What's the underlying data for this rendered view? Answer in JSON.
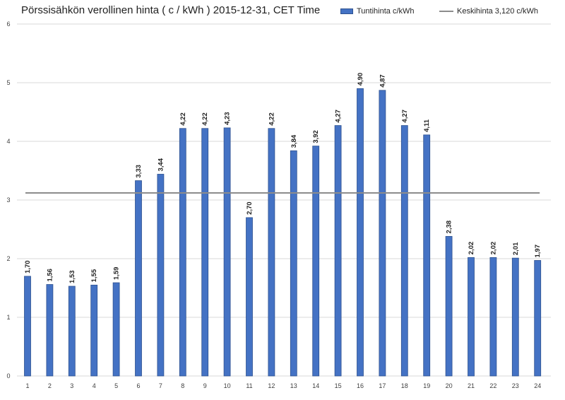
{
  "chart_data": {
    "type": "bar",
    "title": "Pörssisähkön verollinen hinta ( c / kWh ) 2015-12-31, CET Time",
    "categories": [
      "1",
      "2",
      "3",
      "4",
      "5",
      "6",
      "7",
      "8",
      "9",
      "10",
      "11",
      "12",
      "13",
      "14",
      "15",
      "16",
      "17",
      "18",
      "19",
      "20",
      "21",
      "22",
      "23",
      "24"
    ],
    "series": [
      {
        "name": "Tuntihinta c/kWh",
        "values": [
          1.7,
          1.56,
          1.53,
          1.55,
          1.59,
          3.33,
          3.44,
          4.22,
          4.22,
          4.23,
          2.7,
          4.22,
          3.84,
          3.92,
          4.27,
          4.9,
          4.87,
          4.27,
          4.11,
          2.38,
          2.02,
          2.02,
          2.01,
          1.97
        ],
        "labels": [
          "1,70",
          "1,56",
          "1,53",
          "1,55",
          "1,59",
          "3,33",
          "3,44",
          "4,22",
          "4,22",
          "4,23",
          "2,70",
          "4,22",
          "3,84",
          "3,92",
          "4,27",
          "4,90",
          "4,87",
          "4,27",
          "4,11",
          "2,38",
          "2,02",
          "2,02",
          "2,01",
          "1,97"
        ],
        "color": "#4472c4"
      },
      {
        "name": "Keskihinta 3,120 c/kWh",
        "type": "line",
        "value": 3.12,
        "color": "#8c8c8c"
      }
    ],
    "ylim": [
      0,
      6
    ],
    "yticks": [
      "0",
      "1",
      "2",
      "3",
      "4",
      "5",
      "6"
    ],
    "xlabel": "",
    "ylabel": "",
    "grid": true,
    "legend": "top-right"
  }
}
